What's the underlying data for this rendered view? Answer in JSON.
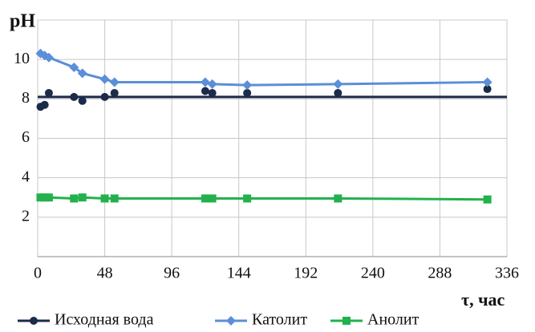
{
  "chart_data": {
    "type": "line",
    "ylabel": "pH",
    "xlabel": "τ, час",
    "xlim": [
      0,
      336
    ],
    "xticks": [
      0,
      48,
      96,
      144,
      192,
      240,
      288,
      336
    ],
    "ylim": [
      0,
      12
    ],
    "yticks": [
      2,
      4,
      6,
      8,
      10
    ],
    "grid": true,
    "legend": "bottom",
    "hline": {
      "value": 8.1,
      "color": "#1c2b4a"
    },
    "series": [
      {
        "name": "Исходная вода",
        "color": "#1c2b4a",
        "marker": "circle",
        "line": false,
        "x": [
          2,
          5,
          8,
          26,
          32,
          48,
          55,
          120,
          125,
          150,
          215,
          322
        ],
        "values": [
          7.6,
          7.7,
          8.3,
          8.1,
          7.9,
          8.1,
          8.3,
          8.4,
          8.3,
          8.3,
          8.3,
          8.5
        ]
      },
      {
        "name": "Католит",
        "color": "#5b8fd8",
        "marker": "diamond",
        "line": true,
        "x": [
          2,
          5,
          8,
          26,
          32,
          48,
          55,
          120,
          125,
          150,
          215,
          322
        ],
        "values": [
          10.3,
          10.2,
          10.1,
          9.6,
          9.3,
          9.0,
          8.85,
          8.85,
          8.75,
          8.7,
          8.75,
          8.85
        ]
      },
      {
        "name": "Анолит",
        "color": "#22b14c",
        "marker": "square",
        "line": true,
        "x": [
          2,
          5,
          8,
          26,
          32,
          48,
          55,
          120,
          125,
          150,
          215,
          322
        ],
        "values": [
          3.0,
          3.0,
          3.0,
          2.95,
          3.0,
          2.95,
          2.95,
          2.95,
          2.95,
          2.95,
          2.95,
          2.9
        ]
      }
    ]
  }
}
